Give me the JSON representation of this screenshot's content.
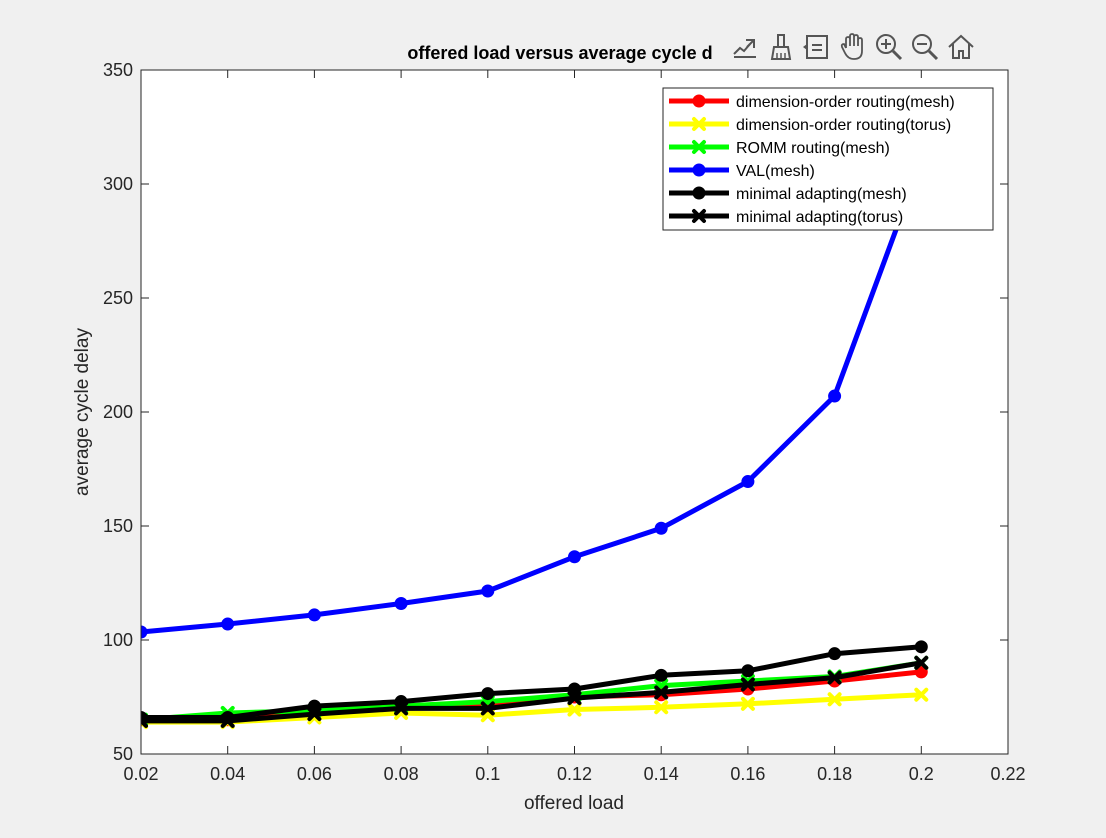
{
  "figure": {
    "background": "#f0f0f0",
    "axes_background": "#ffffff"
  },
  "toolbar": {
    "buttons": [
      {
        "name": "export-icon"
      },
      {
        "name": "brush-icon"
      },
      {
        "name": "datatip-icon"
      },
      {
        "name": "pan-icon"
      },
      {
        "name": "zoom-in-icon"
      },
      {
        "name": "zoom-out-icon"
      },
      {
        "name": "home-icon"
      }
    ]
  },
  "chart_data": {
    "type": "line",
    "title": "offered load versus average cycle d",
    "xlabel": "offered load",
    "ylabel": "average cycle delay",
    "xlim": [
      0.02,
      0.22
    ],
    "ylim": [
      50,
      350
    ],
    "xticks": [
      "0.02",
      "0.04",
      "0.06",
      "0.08",
      "0.1",
      "0.12",
      "0.14",
      "0.16",
      "0.18",
      "0.2",
      "0.22"
    ],
    "yticks": [
      "50",
      "100",
      "150",
      "200",
      "250",
      "300",
      "350"
    ],
    "grid": false,
    "legend_position": "top-right",
    "x": [
      0.02,
      0.04,
      0.06,
      0.08,
      0.1,
      0.12,
      0.14,
      0.16,
      0.18,
      0.2
    ],
    "series": [
      {
        "name": "dimension-order routing(mesh)",
        "color": "#ff0000",
        "marker": "circle",
        "values": [
          65,
          65,
          68,
          70,
          71,
          75,
          76,
          78.5,
          82,
          86
        ]
      },
      {
        "name": "dimension-order routing(torus)",
        "color": "#ffff00",
        "marker": "cross",
        "values": [
          64,
          64,
          66,
          68,
          67,
          69.5,
          70.5,
          72,
          74,
          76
        ]
      },
      {
        "name": "ROMM routing(mesh)",
        "color": "#00ff00",
        "marker": "cross",
        "values": [
          65,
          68,
          69,
          71,
          73,
          76,
          80,
          82,
          84,
          90
        ]
      },
      {
        "name": "VAL(mesh)",
        "color": "#0000ff",
        "marker": "circle",
        "values": [
          103.5,
          107,
          111,
          116,
          121.5,
          136.5,
          149,
          169.5,
          207,
          310
        ]
      },
      {
        "name": "minimal adapting(mesh)",
        "color": "#000000",
        "marker": "circle",
        "values": [
          66,
          66,
          71,
          73,
          76.5,
          78.5,
          84.5,
          86.5,
          94,
          97
        ]
      },
      {
        "name": "minimal adapting(torus)",
        "color": "#000000",
        "marker": "cross",
        "values": [
          64.5,
          64.5,
          67.5,
          70,
          70,
          74.5,
          77,
          80.5,
          83.5,
          90
        ]
      }
    ]
  }
}
